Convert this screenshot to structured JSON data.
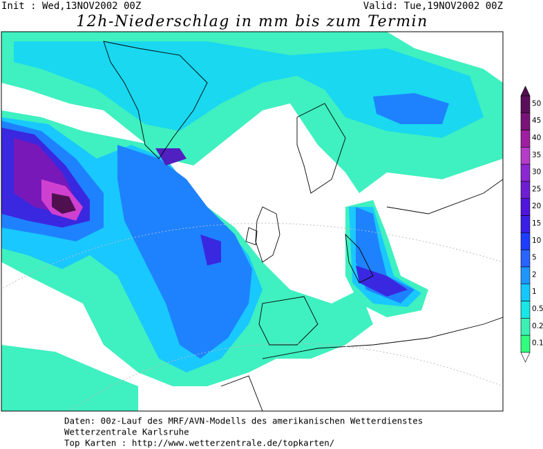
{
  "header": {
    "init": "Init : Wed,13NOV2002 00Z",
    "valid": "Valid: Tue,19NOV2002 00Z",
    "title": "12h-Niederschlag in mm bis zum Termin"
  },
  "legend": {
    "levels": [
      50,
      45,
      40,
      35,
      30,
      25,
      20,
      15,
      10,
      5,
      2,
      1,
      0.5,
      0.2,
      0.1
    ],
    "colors": [
      "#5a0f5a",
      "#781478",
      "#a01ea0",
      "#b43cc8",
      "#8c28d2",
      "#6e1ed2",
      "#5014dc",
      "#3a1ee6",
      "#1e3cff",
      "#2864ff",
      "#1e96ff",
      "#14c8ff",
      "#19e6e6",
      "#3cf0b4",
      "#30ff80"
    ],
    "top_color": "#501050"
  },
  "footer": [
    "Daten: 00z-Lauf des MRF/AVN-Modells des amerikanischen Wetterdienstes",
    "Wetterzentrale Karlsruhe",
    "Top Karten :  http://www.wetterzentrale.de/topkarten/"
  ]
}
